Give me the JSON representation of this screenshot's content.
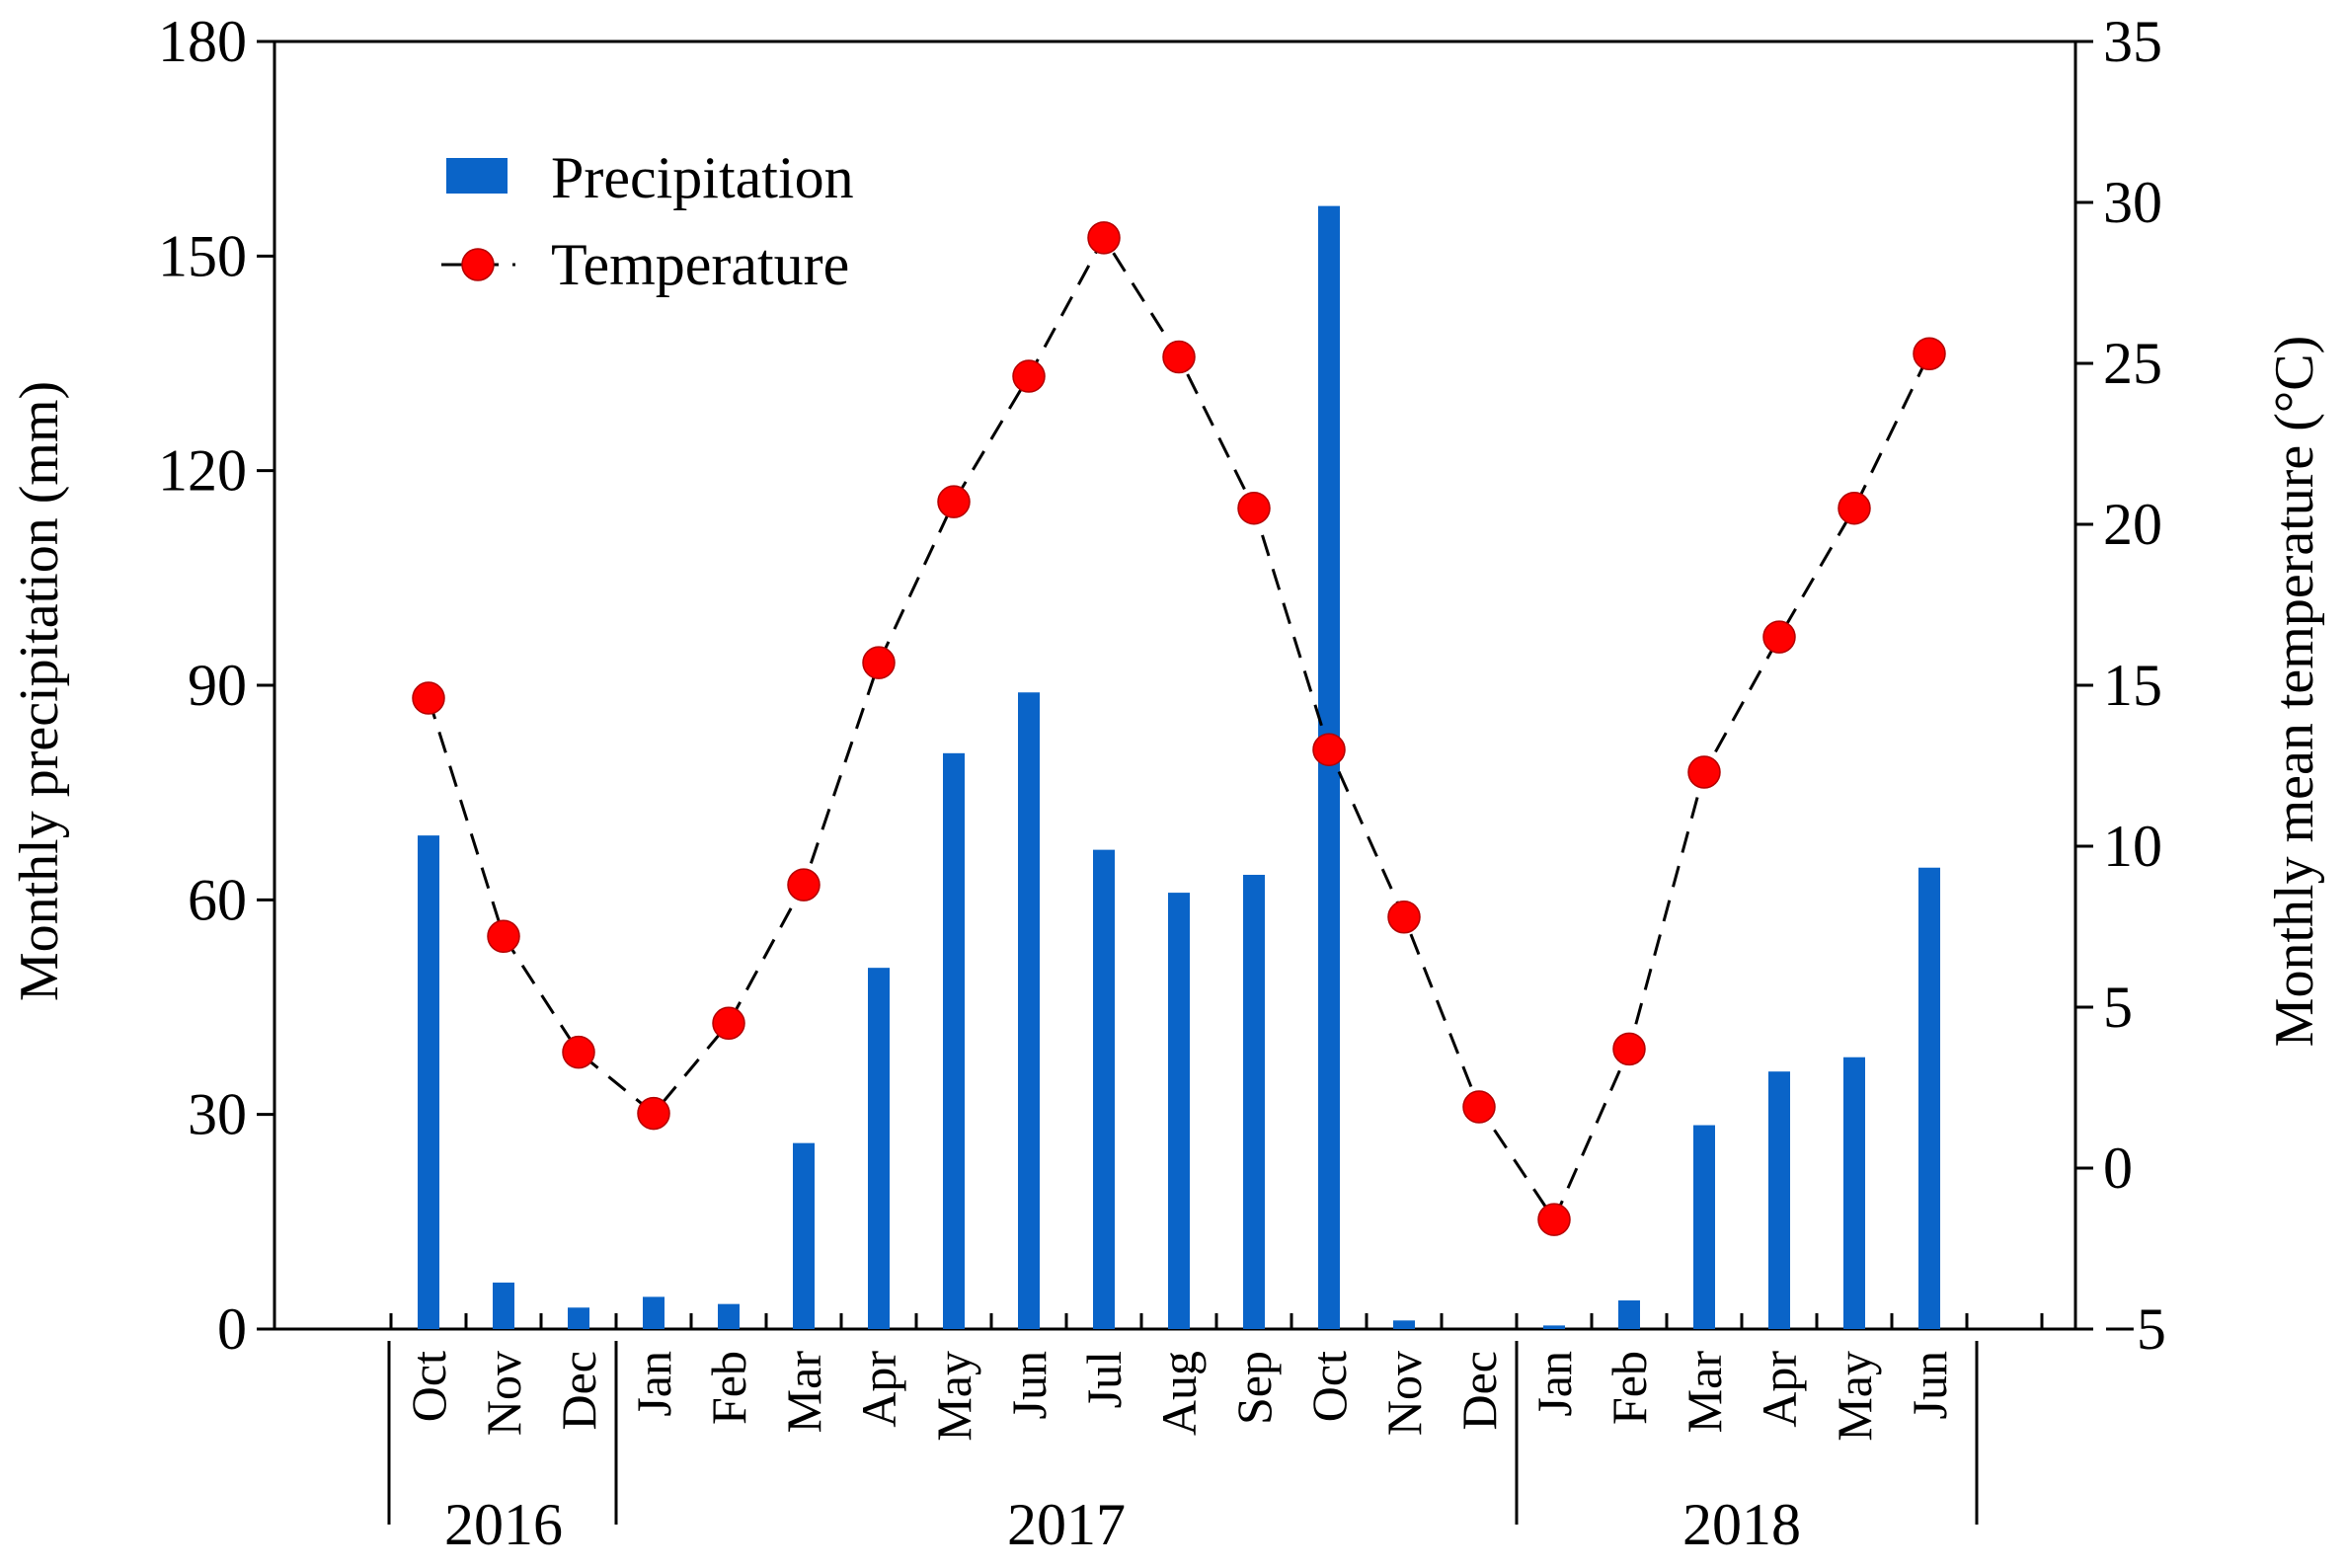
{
  "chart_data": {
    "type": "bar+line",
    "categories": [
      "Oct",
      "Nov",
      "Dec",
      "Jan",
      "Feb",
      "Mar",
      "Apr",
      "May",
      "Jun",
      "Jul",
      "Aug",
      "Sep",
      "Oct",
      "Nov",
      "Dec",
      "Jan",
      "Feb",
      "Mar",
      "Apr",
      "May",
      "Jun"
    ],
    "years": [
      {
        "label": "2016",
        "start": 0,
        "end": 2
      },
      {
        "label": "2017",
        "start": 3,
        "end": 14
      },
      {
        "label": "2018",
        "start": 15,
        "end": 20
      }
    ],
    "series": [
      {
        "name": "Precipitation",
        "type": "bar",
        "axis": "left",
        "color": "#0a64c8",
        "values": [
          69,
          6.5,
          3,
          4.5,
          3.5,
          26,
          50.5,
          80.5,
          89,
          67,
          61,
          63.5,
          157,
          1.2,
          0,
          0.5,
          4,
          28.5,
          36,
          38,
          64.5
        ]
      },
      {
        "name": "Temperature",
        "type": "line",
        "axis": "right",
        "color": "#ff0000",
        "values": [
          14.6,
          7.2,
          3.6,
          1.7,
          4.5,
          8.8,
          15.7,
          20.7,
          24.6,
          28.9,
          25.2,
          20.5,
          13.0,
          7.8,
          1.9,
          -1.6,
          3.7,
          12.3,
          16.5,
          20.5,
          25.3
        ]
      }
    ],
    "y_left": {
      "label": "Monthly precipitation (mm)",
      "ylim": [
        0,
        180
      ],
      "ticks": [
        0,
        30,
        60,
        90,
        120,
        150,
        180
      ]
    },
    "y_right": {
      "label": "Monthly mean temperature (°C)",
      "ylim": [
        -5,
        35
      ],
      "ticks": [
        -5,
        0,
        5,
        10,
        15,
        20,
        25,
        30,
        35
      ],
      "tick_labels": [
        "−5",
        "0",
        "5",
        "10",
        "15",
        "20",
        "25",
        "30",
        "35"
      ]
    },
    "legend": {
      "placement": "top-left",
      "entries": [
        "Precipitation",
        "Temperature"
      ]
    },
    "grid": false
  }
}
